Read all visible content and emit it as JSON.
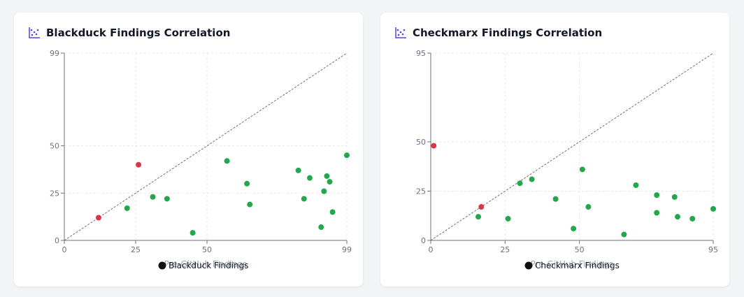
{
  "colors": {
    "icon": "#4f46e5",
    "point_low": "#22a74a",
    "point_high": "#dc3545",
    "grid": "#e5e7eb",
    "axis": "#6b7280",
    "diagonal": "#6b7280"
  },
  "icons": {
    "card_icon": "scatter-chart-icon"
  },
  "chart_data": [
    {
      "type": "scatter",
      "title": "Blackduck Findings Correlation",
      "xlabel": "Pre-GitHub Findings",
      "ylabel": "",
      "xlim": [
        0,
        99
      ],
      "ylim": [
        0,
        99
      ],
      "xticks": [
        0,
        25,
        50,
        99
      ],
      "yticks": [
        0,
        25,
        50,
        99
      ],
      "grid": true,
      "reference_line": "y = x",
      "legend": "bottom",
      "series": [
        {
          "name": "Blackduck Findings",
          "points": [
            {
              "x": 12,
              "y": 12,
              "above_diagonal": true
            },
            {
              "x": 26,
              "y": 40,
              "above_diagonal": true
            },
            {
              "x": 22,
              "y": 17,
              "above_diagonal": false
            },
            {
              "x": 31,
              "y": 23,
              "above_diagonal": false
            },
            {
              "x": 36,
              "y": 22,
              "above_diagonal": false
            },
            {
              "x": 45,
              "y": 4,
              "above_diagonal": false
            },
            {
              "x": 57,
              "y": 42,
              "above_diagonal": false
            },
            {
              "x": 64,
              "y": 30,
              "above_diagonal": false
            },
            {
              "x": 65,
              "y": 19,
              "above_diagonal": false
            },
            {
              "x": 82,
              "y": 37,
              "above_diagonal": false
            },
            {
              "x": 84,
              "y": 22,
              "above_diagonal": false
            },
            {
              "x": 86,
              "y": 33,
              "above_diagonal": false
            },
            {
              "x": 90,
              "y": 7,
              "above_diagonal": false
            },
            {
              "x": 91,
              "y": 26,
              "above_diagonal": false
            },
            {
              "x": 92,
              "y": 34,
              "above_diagonal": false
            },
            {
              "x": 93,
              "y": 31,
              "above_diagonal": false
            },
            {
              "x": 94,
              "y": 15,
              "above_diagonal": false
            },
            {
              "x": 99,
              "y": 45,
              "above_diagonal": false
            }
          ]
        }
      ]
    },
    {
      "type": "scatter",
      "title": "Checkmarx Findings Correlation",
      "xlabel": "Pre-GitHub Findings",
      "ylabel": "",
      "xlim": [
        0,
        95
      ],
      "ylim": [
        0,
        95
      ],
      "xticks": [
        0,
        25,
        50,
        95
      ],
      "yticks": [
        0,
        25,
        50,
        95
      ],
      "grid": true,
      "reference_line": "y = x",
      "legend": "bottom",
      "series": [
        {
          "name": "Checkmarx Findings",
          "points": [
            {
              "x": 1,
              "y": 48,
              "above_diagonal": true
            },
            {
              "x": 17,
              "y": 17,
              "above_diagonal": true
            },
            {
              "x": 16,
              "y": 12,
              "above_diagonal": false
            },
            {
              "x": 26,
              "y": 11,
              "above_diagonal": false
            },
            {
              "x": 30,
              "y": 29,
              "above_diagonal": false
            },
            {
              "x": 34,
              "y": 31,
              "above_diagonal": false
            },
            {
              "x": 42,
              "y": 21,
              "above_diagonal": false
            },
            {
              "x": 48,
              "y": 6,
              "above_diagonal": false
            },
            {
              "x": 51,
              "y": 36,
              "above_diagonal": false
            },
            {
              "x": 53,
              "y": 17,
              "above_diagonal": false
            },
            {
              "x": 65,
              "y": 3,
              "above_diagonal": false
            },
            {
              "x": 69,
              "y": 28,
              "above_diagonal": false
            },
            {
              "x": 76,
              "y": 23,
              "above_diagonal": false
            },
            {
              "x": 76,
              "y": 14,
              "above_diagonal": false
            },
            {
              "x": 82,
              "y": 22,
              "above_diagonal": false
            },
            {
              "x": 83,
              "y": 12,
              "above_diagonal": false
            },
            {
              "x": 88,
              "y": 11,
              "above_diagonal": false
            },
            {
              "x": 95,
              "y": 16,
              "above_diagonal": false
            }
          ]
        }
      ]
    }
  ]
}
